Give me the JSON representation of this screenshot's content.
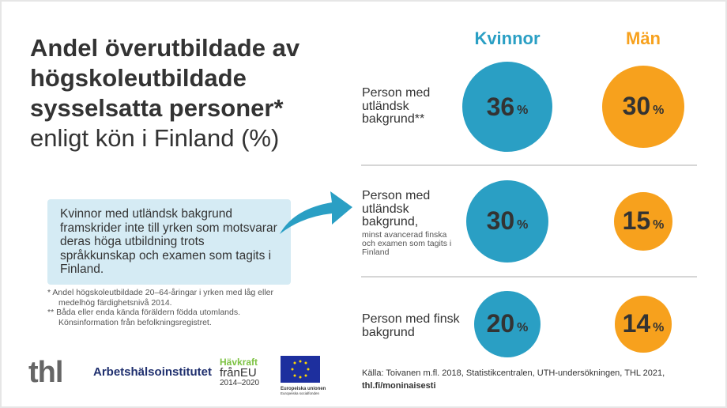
{
  "title": {
    "bold": "Andel överutbildade av högskoleutbildade sysselsatta personer*",
    "normal": "enligt kön i Finland (%)"
  },
  "callout": "Kvinnor med utländsk bakgrund framskrider inte till yrken som motsvarar deras höga utbildning trots språkkunskap och examen som tagits i Finland.",
  "notes": [
    "* Andel högskoleutbildade 20–64-åringar i yrken med låg eller medelhög färdighetsnivå 2014.",
    "** Båda eller enda kända föräldern födda utomlands. Könsinformation från befolkningsregistret."
  ],
  "logos": {
    "thl": "thl",
    "ttl": "Arbetshälsoinstitutet",
    "havkraft": [
      "Hävkraft",
      "frånEU",
      "2014–2020"
    ],
    "eu": [
      "Europeiska unionen",
      "Europeiska socialfonden"
    ]
  },
  "source": {
    "text": "Källa:  Toivanen m.fl. 2018, Statistikcentralen, UTH-undersökningen, THL 2021,",
    "link": "thl.fi/moninaisesti"
  },
  "chart_data": {
    "type": "bubble",
    "categories": [
      {
        "label": "Person med utländsk bakgrund**",
        "sub": ""
      },
      {
        "label": "Person med utländsk bakgrund,",
        "sub": "minst avancerad finska och examen som tagits i Finland"
      },
      {
        "label": "Person med finsk bakgrund",
        "sub": ""
      }
    ],
    "unit": "%",
    "series": [
      {
        "name": "Kvinnor",
        "color": "#2a9fc4",
        "values": [
          36,
          30,
          20
        ]
      },
      {
        "name": "Män",
        "color": "#f7a11d",
        "values": [
          30,
          15,
          14
        ]
      }
    ]
  }
}
